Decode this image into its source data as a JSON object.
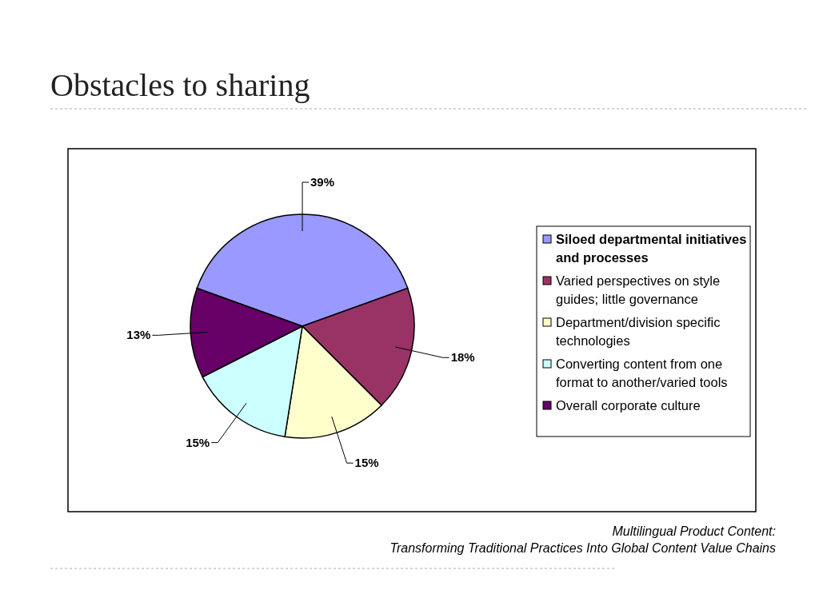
{
  "chart_data": {
    "type": "pie",
    "title": "Obstacles to sharing",
    "categories": [
      "Siloed departmental initiatives and processes",
      "Varied perspectives on style guides; little governance",
      "Department/division specific technologies",
      "Converting content from one format to another/varied tools",
      "Overall corporate culture"
    ],
    "values": [
      39,
      18,
      15,
      15,
      13
    ],
    "colors": [
      "#9999ff",
      "#993366",
      "#ffffcc",
      "#ccffff",
      "#660066"
    ],
    "value_labels": [
      "39%",
      "18%",
      "15%",
      "15%",
      "13%"
    ],
    "legend": "right",
    "annotations": [
      "Multilingual Product Content:",
      "Transforming Traditional Practices Into Global Content Value Chains"
    ]
  }
}
